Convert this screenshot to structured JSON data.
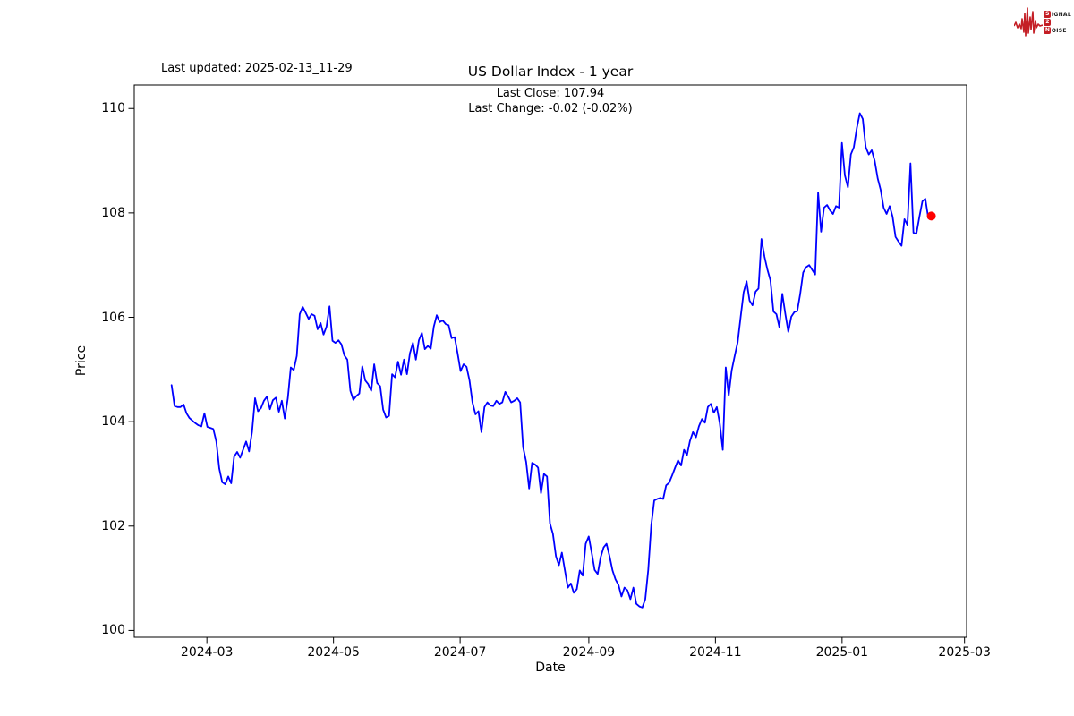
{
  "header": {
    "last_updated": "Last updated: 2025-02-13_11-29",
    "title": "US Dollar Index - 1 year",
    "subtitle_line1": "Last Close: 107.94",
    "subtitle_line2": "Last Change: -0.02 (-0.02%)"
  },
  "logo": {
    "row1_boxed": "S",
    "row1_rest": "IGNAL",
    "row2_boxed": "2",
    "row3_boxed": "N",
    "row3_rest": "OISE",
    "accent_color": "#c41e25"
  },
  "chart_data": {
    "type": "line",
    "title": "US Dollar Index - 1 year",
    "xlabel": "Date",
    "ylabel": "Price",
    "last_close": 107.94,
    "last_change": "-0.02 (-0.02%)",
    "line_color": "#0000ff",
    "marker_color": "#ff0000",
    "grid": false,
    "x_start": "2024-02-13",
    "x_end": "2025-02-13",
    "xlim": [
      "2024-01-26",
      "2025-03-02"
    ],
    "ylim": [
      99.87,
      110.45
    ],
    "y_ticks": [
      100,
      102,
      104,
      106,
      108,
      110
    ],
    "x_ticks": [
      {
        "date": "2024-03-01",
        "label": "2024-03"
      },
      {
        "date": "2024-05-01",
        "label": "2024-05"
      },
      {
        "date": "2024-07-01",
        "label": "2024-07"
      },
      {
        "date": "2024-09-01",
        "label": "2024-09"
      },
      {
        "date": "2024-11-01",
        "label": "2024-11"
      },
      {
        "date": "2025-01-01",
        "label": "2025-01"
      },
      {
        "date": "2025-03-01",
        "label": "2025-03"
      }
    ],
    "values": [
      104.7,
      104.3,
      104.28,
      104.28,
      104.33,
      104.16,
      104.07,
      104.02,
      103.97,
      103.93,
      103.91,
      104.16,
      103.9,
      103.88,
      103.86,
      103.62,
      103.1,
      102.84,
      102.8,
      102.95,
      102.82,
      103.33,
      103.42,
      103.31,
      103.46,
      103.62,
      103.43,
      103.8,
      104.45,
      104.2,
      104.26,
      104.4,
      104.48,
      104.24,
      104.41,
      104.46,
      104.19,
      104.4,
      104.06,
      104.45,
      105.04,
      104.99,
      105.26,
      106.06,
      106.2,
      106.09,
      105.97,
      106.06,
      106.03,
      105.77,
      105.89,
      105.67,
      105.82,
      106.21,
      105.55,
      105.51,
      105.56,
      105.48,
      105.27,
      105.19,
      104.59,
      104.42,
      104.49,
      104.54,
      105.06,
      104.79,
      104.72,
      104.59,
      105.1,
      104.74,
      104.68,
      104.23,
      104.08,
      104.11,
      104.91,
      104.85,
      105.15,
      104.9,
      105.19,
      104.91,
      105.31,
      105.51,
      105.19,
      105.56,
      105.7,
      105.39,
      105.45,
      105.4,
      105.82,
      106.04,
      105.91,
      105.94,
      105.87,
      105.85,
      105.6,
      105.62,
      105.31,
      104.97,
      105.1,
      105.05,
      104.79,
      104.37,
      104.14,
      104.2,
      103.8,
      104.28,
      104.37,
      104.31,
      104.3,
      104.4,
      104.34,
      104.37,
      104.57,
      104.48,
      104.37,
      104.4,
      104.45,
      104.37,
      103.51,
      103.23,
      102.72,
      103.21,
      103.18,
      103.12,
      102.63,
      103.0,
      102.95,
      102.05,
      101.85,
      101.42,
      101.25,
      101.49,
      101.16,
      100.82,
      100.9,
      100.72,
      100.79,
      101.15,
      101.05,
      101.66,
      101.8,
      101.49,
      101.16,
      101.08,
      101.4,
      101.59,
      101.66,
      101.42,
      101.15,
      100.98,
      100.87,
      100.65,
      100.82,
      100.77,
      100.6,
      100.82,
      100.51,
      100.46,
      100.44,
      100.6,
      101.16,
      102.02,
      102.49,
      102.52,
      102.54,
      102.52,
      102.78,
      102.83,
      102.97,
      103.12,
      103.26,
      103.16,
      103.46,
      103.36,
      103.63,
      103.8,
      103.7,
      103.91,
      104.05,
      103.98,
      104.28,
      104.34,
      104.17,
      104.28,
      103.97,
      103.46,
      105.04,
      104.5,
      104.98,
      105.26,
      105.52,
      106.0,
      106.48,
      106.69,
      106.32,
      106.23,
      106.49,
      106.55,
      107.5,
      107.16,
      106.91,
      106.71,
      106.11,
      106.06,
      105.81,
      106.45,
      106.06,
      105.72,
      106.01,
      106.1,
      106.12,
      106.45,
      106.86,
      106.96,
      107.0,
      106.91,
      106.82,
      108.39,
      107.64,
      108.1,
      108.15,
      108.05,
      107.98,
      108.13,
      108.1,
      109.34,
      108.72,
      108.49,
      109.12,
      109.26,
      109.63,
      109.91,
      109.8,
      109.26,
      109.12,
      109.2,
      109.0,
      108.66,
      108.44,
      108.1,
      107.98,
      108.13,
      107.93,
      107.54,
      107.45,
      107.37,
      107.88,
      107.77,
      108.95,
      107.62,
      107.6,
      107.93,
      108.22,
      108.27,
      107.9,
      107.94
    ]
  }
}
